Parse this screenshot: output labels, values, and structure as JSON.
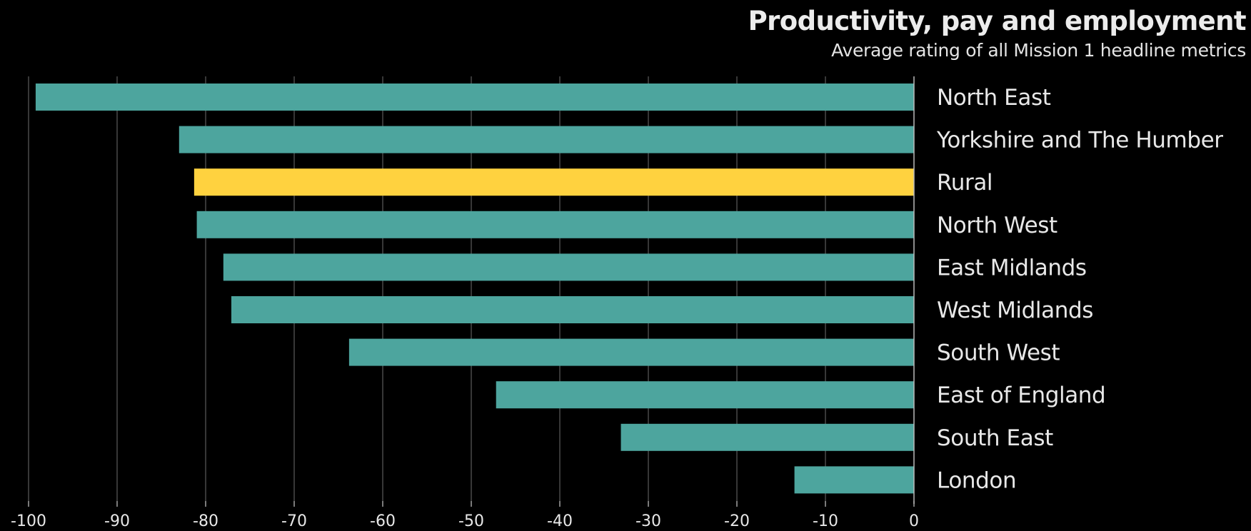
{
  "chart_data": {
    "type": "bar",
    "orientation": "horizontal",
    "title": "Productivity, pay and employment",
    "subtitle": "Average rating of all Mission 1 headline metrics",
    "categories": [
      "North East",
      "Yorkshire and The Humber",
      "Rural",
      "North West",
      "East Midlands",
      "West Midlands",
      "South West",
      "East of England",
      "South East",
      "London"
    ],
    "values": [
      -99.2,
      -83.0,
      -81.3,
      -81.0,
      -78.0,
      -77.1,
      -63.8,
      -47.2,
      -33.1,
      -13.5
    ],
    "highlight": "Rural",
    "colors": {
      "bar": "#4da59e",
      "highlight": "#ffd23f",
      "grid": "#555555",
      "axis": "#bbbbbb",
      "text": "#e8e8e8",
      "background": "#000000"
    },
    "xlim": [
      -100,
      0
    ],
    "xticks": [
      -100,
      -90,
      -80,
      -70,
      -60,
      -50,
      -40,
      -30,
      -20,
      -10,
      0
    ],
    "xlabel": "",
    "ylabel": "",
    "grid": true,
    "legend": "none",
    "category_labels_side": "right"
  }
}
